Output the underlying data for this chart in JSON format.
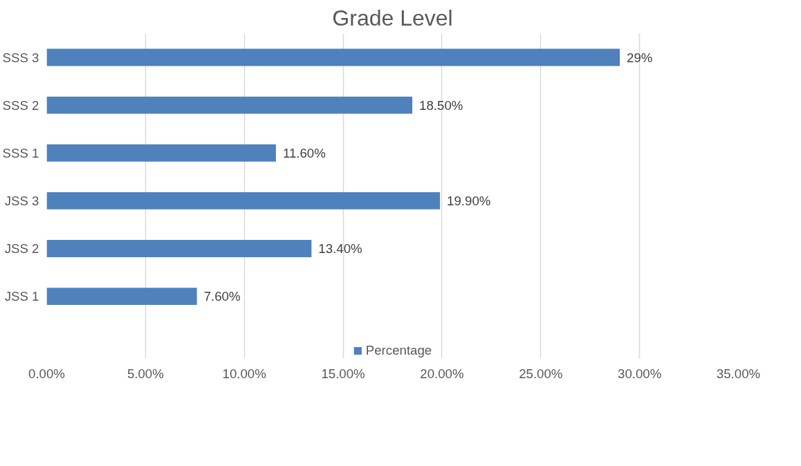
{
  "chart_data": {
    "type": "bar",
    "orientation": "horizontal",
    "title": "Grade Level",
    "categories": [
      "SSS 3",
      "SSS 2",
      "SSS 1",
      "JSS 3",
      "JSS 2",
      "JSS 1"
    ],
    "series": [
      {
        "name": "Percentage",
        "color": "#4f81bd",
        "values": [
          29,
          18.5,
          11.6,
          19.9,
          13.4,
          7.6
        ],
        "value_labels": [
          "29%",
          "18.50%",
          "11.60%",
          "19.90%",
          "13.40%",
          "7.60%"
        ]
      }
    ],
    "xlim": [
      0,
      35
    ],
    "xticks": [
      {
        "value": 0,
        "label": "0.00%"
      },
      {
        "value": 5,
        "label": "5.00%"
      },
      {
        "value": 10,
        "label": "10.00%"
      },
      {
        "value": 15,
        "label": "15.00%"
      },
      {
        "value": 20,
        "label": "20.00%"
      },
      {
        "value": 25,
        "label": "25.00%"
      },
      {
        "value": 30,
        "label": "30.00%"
      },
      {
        "value": 35,
        "label": "35.00%"
      }
    ],
    "grid": "x",
    "legend": "bottom"
  }
}
